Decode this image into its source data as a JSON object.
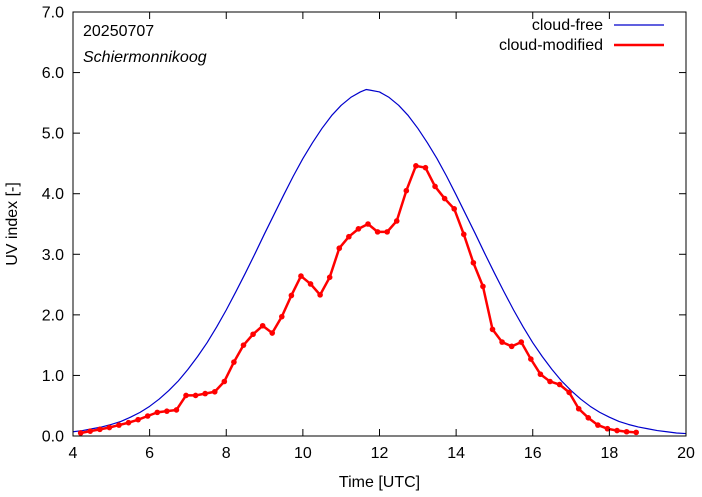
{
  "chart_data": {
    "type": "line",
    "title": "",
    "xlabel": "Time  [UTC]",
    "ylabel": "UV index  [-]",
    "xlim": [
      4,
      20
    ],
    "ylim": [
      0,
      7
    ],
    "x_ticks": [
      4,
      6,
      8,
      10,
      12,
      14,
      16,
      18,
      20
    ],
    "y_ticks": [
      "0.0",
      "1.0",
      "2.0",
      "3.0",
      "4.0",
      "5.0",
      "6.0",
      "7.0"
    ],
    "grid": false,
    "legend_position": "top-right",
    "annotations": {
      "date": "20250707",
      "location": "Schiermonnikoog"
    },
    "series": [
      {
        "name": "cloud-free",
        "color": "#0000cc",
        "style": "line",
        "x": [
          4.0,
          4.25,
          4.5,
          4.75,
          5.0,
          5.25,
          5.5,
          5.75,
          6.0,
          6.25,
          6.5,
          6.75,
          7.0,
          7.25,
          7.5,
          7.75,
          8.0,
          8.25,
          8.5,
          8.75,
          9.0,
          9.25,
          9.5,
          9.75,
          10.0,
          10.25,
          10.5,
          10.75,
          11.0,
          11.25,
          11.5,
          11.65,
          11.75,
          12.0,
          12.25,
          12.5,
          12.75,
          13.0,
          13.25,
          13.5,
          13.75,
          14.0,
          14.25,
          14.5,
          14.75,
          15.0,
          15.25,
          15.5,
          15.75,
          16.0,
          16.25,
          16.5,
          16.75,
          17.0,
          17.25,
          17.5,
          17.75,
          18.0,
          18.25,
          18.5,
          18.75,
          19.0,
          19.25,
          19.5,
          19.75,
          20.0
        ],
        "y": [
          0.07,
          0.09,
          0.12,
          0.15,
          0.19,
          0.24,
          0.31,
          0.39,
          0.49,
          0.61,
          0.75,
          0.91,
          1.1,
          1.31,
          1.54,
          1.8,
          2.08,
          2.38,
          2.69,
          3.01,
          3.34,
          3.66,
          3.98,
          4.29,
          4.58,
          4.84,
          5.08,
          5.29,
          5.46,
          5.59,
          5.68,
          5.72,
          5.71,
          5.68,
          5.59,
          5.46,
          5.29,
          5.08,
          4.84,
          4.58,
          4.29,
          3.98,
          3.66,
          3.34,
          3.01,
          2.69,
          2.38,
          2.08,
          1.8,
          1.54,
          1.31,
          1.1,
          0.91,
          0.75,
          0.61,
          0.49,
          0.39,
          0.31,
          0.24,
          0.19,
          0.15,
          0.12,
          0.09,
          0.07,
          0.05,
          0.04
        ]
      },
      {
        "name": "cloud-modified",
        "color": "#ff0000",
        "style": "line-points",
        "x": [
          4.2,
          4.45,
          4.7,
          4.95,
          5.2,
          5.45,
          5.7,
          5.95,
          6.2,
          6.45,
          6.7,
          6.95,
          7.2,
          7.45,
          7.7,
          7.95,
          8.2,
          8.45,
          8.7,
          8.95,
          9.2,
          9.45,
          9.7,
          9.95,
          10.2,
          10.45,
          10.7,
          10.95,
          11.2,
          11.45,
          11.7,
          11.95,
          12.2,
          12.45,
          12.7,
          12.95,
          13.2,
          13.45,
          13.7,
          13.95,
          14.2,
          14.45,
          14.7,
          14.95,
          15.2,
          15.45,
          15.7,
          15.95,
          16.2,
          16.45,
          16.7,
          16.95,
          17.2,
          17.45,
          17.7,
          17.95,
          18.2,
          18.45,
          18.7
        ],
        "y": [
          0.05,
          0.08,
          0.11,
          0.14,
          0.18,
          0.22,
          0.27,
          0.33,
          0.39,
          0.41,
          0.43,
          0.67,
          0.67,
          0.7,
          0.73,
          0.9,
          1.22,
          1.5,
          1.68,
          1.82,
          1.7,
          1.97,
          2.32,
          2.64,
          2.51,
          2.33,
          2.62,
          3.1,
          3.29,
          3.42,
          3.5,
          3.37,
          3.37,
          3.55,
          4.05,
          4.46,
          4.43,
          4.12,
          3.92,
          3.75,
          3.33,
          2.86,
          2.47,
          1.76,
          1.55,
          1.48,
          1.55,
          1.27,
          1.02,
          0.9,
          0.85,
          0.72,
          0.45,
          0.3,
          0.18,
          0.12,
          0.09,
          0.07,
          0.06
        ]
      }
    ]
  }
}
